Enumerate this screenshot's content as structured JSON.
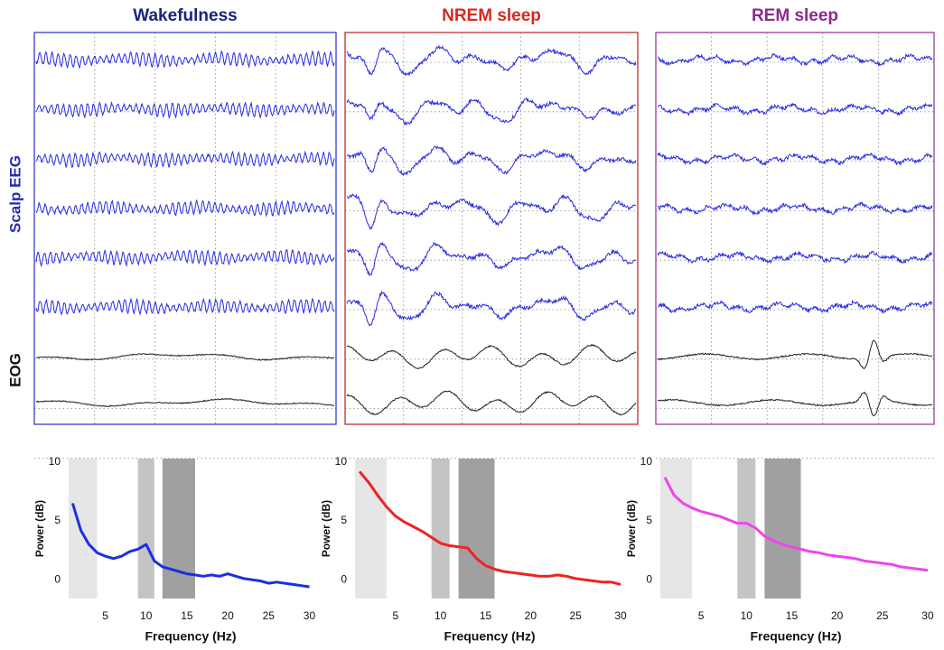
{
  "row_labels": {
    "eeg": "Scalp EEG",
    "eog": "EOG"
  },
  "chart_data": [
    {
      "type": "line",
      "title": "Wakefulness",
      "title_color": "#1a237e",
      "frame_color": "#3a3ad0",
      "color": "#1a2fe0",
      "xlabel": "Frequency (Hz)",
      "ylabel": "Power (dB)",
      "x": [
        1,
        2,
        3,
        4,
        5,
        6,
        7,
        8,
        9,
        10,
        11,
        12,
        13,
        14,
        15,
        16,
        17,
        18,
        19,
        20,
        21,
        22,
        23,
        24,
        25,
        26,
        27,
        28,
        29,
        30
      ],
      "values": [
        6.5,
        4.2,
        3.0,
        2.3,
        2.0,
        1.8,
        2.0,
        2.4,
        2.6,
        3.0,
        1.6,
        1.1,
        0.9,
        0.7,
        0.5,
        0.4,
        0.3,
        0.4,
        0.3,
        0.5,
        0.3,
        0.1,
        0.0,
        -0.1,
        -0.3,
        -0.2,
        -0.3,
        -0.4,
        -0.5,
        -0.6
      ],
      "bands": [
        {
          "from": 0.5,
          "to": 4,
          "color": "#e6e6e6"
        },
        {
          "from": 9,
          "to": 11,
          "color": "#c4c4c4"
        },
        {
          "from": 12,
          "to": 16,
          "color": "#a0a0a0"
        }
      ],
      "xlim": [
        0.4,
        30.5
      ],
      "ylim": [
        -1.6,
        10.3
      ],
      "xticks": [
        5,
        10,
        15,
        20,
        25,
        30
      ],
      "yticks": [
        0,
        5,
        10
      ]
    },
    {
      "type": "line",
      "title": "NREM sleep",
      "title_color": "#d42a20",
      "frame_color": "#c03030",
      "color": "#ee2222",
      "xlabel": "Frequency (Hz)",
      "ylabel": "Power (dB)",
      "x": [
        1,
        2,
        3,
        4,
        5,
        6,
        7,
        8,
        9,
        10,
        11,
        12,
        13,
        14,
        15,
        16,
        17,
        18,
        19,
        20,
        21,
        22,
        23,
        24,
        25,
        26,
        27,
        28,
        29,
        30
      ],
      "values": [
        9.2,
        8.3,
        7.2,
        6.2,
        5.4,
        4.9,
        4.5,
        4.1,
        3.6,
        3.1,
        2.9,
        2.8,
        2.7,
        1.8,
        1.2,
        0.9,
        0.7,
        0.6,
        0.5,
        0.4,
        0.3,
        0.3,
        0.4,
        0.3,
        0.1,
        0.0,
        -0.1,
        -0.2,
        -0.2,
        -0.4
      ],
      "bands": [
        {
          "from": 0.5,
          "to": 4,
          "color": "#e6e6e6"
        },
        {
          "from": 9,
          "to": 11,
          "color": "#c4c4c4"
        },
        {
          "from": 12,
          "to": 16,
          "color": "#a0a0a0"
        }
      ],
      "xlim": [
        0.4,
        30.5
      ],
      "ylim": [
        -1.6,
        10.3
      ],
      "xticks": [
        5,
        10,
        15,
        20,
        25,
        30
      ],
      "yticks": [
        0,
        5,
        10
      ]
    },
    {
      "type": "line",
      "title": "REM sleep",
      "title_color": "#8b2a8b",
      "frame_color": "#9a3a9a",
      "color": "#ee44ee",
      "xlabel": "Frequency (Hz)",
      "ylabel": "Power (dB)",
      "x": [
        1,
        2,
        3,
        4,
        5,
        6,
        7,
        8,
        9,
        10,
        11,
        12,
        13,
        14,
        15,
        16,
        17,
        18,
        19,
        20,
        21,
        22,
        23,
        24,
        25,
        26,
        27,
        28,
        29,
        30
      ],
      "values": [
        8.7,
        7.2,
        6.5,
        6.1,
        5.8,
        5.6,
        5.4,
        5.1,
        4.8,
        4.8,
        4.4,
        3.7,
        3.3,
        3.0,
        2.8,
        2.6,
        2.4,
        2.3,
        2.1,
        2.0,
        1.9,
        1.8,
        1.6,
        1.5,
        1.4,
        1.3,
        1.1,
        1.0,
        0.9,
        0.8
      ],
      "bands": [
        {
          "from": 0.5,
          "to": 4,
          "color": "#e6e6e6"
        },
        {
          "from": 9,
          "to": 11,
          "color": "#c4c4c4"
        },
        {
          "from": 12,
          "to": 16,
          "color": "#a0a0a0"
        }
      ],
      "xlim": [
        0.4,
        30.5
      ],
      "ylim": [
        -1.6,
        10.3
      ],
      "xticks": [
        5,
        10,
        15,
        20,
        25,
        30
      ],
      "yticks": [
        0,
        5,
        10
      ]
    }
  ]
}
